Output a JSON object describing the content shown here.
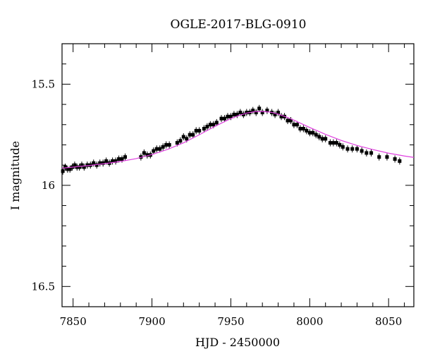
{
  "chart_data": {
    "type": "scatter",
    "title": "OGLE-2017-BLG-0910",
    "xlabel": "HJD - 2450000",
    "ylabel": "I magnitude",
    "xlim": [
      7843,
      8066
    ],
    "ylim": [
      16.6,
      15.3
    ],
    "y_inverted": true,
    "grid": false,
    "x_ticks": [
      7850,
      7900,
      7950,
      8000,
      8050
    ],
    "y_ticks": [
      15.5,
      16,
      16.5
    ],
    "x_tick_labels": [
      "7850",
      "7900",
      "7950",
      "8000",
      "8050"
    ],
    "y_tick_labels": [
      "15.5",
      "16",
      "16.5"
    ],
    "colors": {
      "data": "#000000",
      "model": "#e040e0"
    },
    "series": [
      {
        "type": "scatter",
        "x": [
          7843.5,
          7845,
          7846.5,
          7848,
          7849.5,
          7851,
          7852.5,
          7854,
          7855.5,
          7857,
          7859,
          7861,
          7863,
          7865,
          7867,
          7869,
          7871,
          7873,
          7875,
          7877,
          7879,
          7881,
          7883,
          7893,
          7895,
          7897,
          7899,
          7901,
          7903,
          7905,
          7907,
          7909,
          7911,
          7916,
          7918,
          7920,
          7922,
          7924,
          7926,
          7928,
          7930,
          7933,
          7935,
          7937,
          7939,
          7941,
          7944,
          7946,
          7948,
          7950,
          7952,
          7954,
          7956,
          7958,
          7960,
          7962,
          7964,
          7966,
          7968,
          7970,
          7973,
          7976,
          7978,
          7980,
          7982,
          7984,
          7986,
          7988,
          7990,
          7992,
          7994,
          7996,
          7998,
          8000,
          8002,
          8004,
          8006,
          8008,
          8010,
          8013,
          8015,
          8017,
          8019,
          8021,
          8024,
          8027,
          8030,
          8033,
          8036,
          8039,
          8044,
          8049,
          8054,
          8057
        ],
        "y": [
          15.93,
          15.91,
          15.92,
          15.92,
          15.91,
          15.9,
          15.91,
          15.91,
          15.9,
          15.91,
          15.9,
          15.9,
          15.89,
          15.9,
          15.89,
          15.89,
          15.88,
          15.89,
          15.88,
          15.88,
          15.87,
          15.87,
          15.86,
          15.86,
          15.84,
          15.85,
          15.85,
          15.83,
          15.82,
          15.82,
          15.81,
          15.8,
          15.8,
          15.79,
          15.78,
          15.76,
          15.77,
          15.75,
          15.75,
          15.73,
          15.73,
          15.72,
          15.71,
          15.7,
          15.7,
          15.69,
          15.67,
          15.67,
          15.66,
          15.66,
          15.65,
          15.65,
          15.64,
          15.65,
          15.64,
          15.64,
          15.63,
          15.64,
          15.62,
          15.64,
          15.63,
          15.64,
          15.65,
          15.64,
          15.66,
          15.66,
          15.68,
          15.68,
          15.7,
          15.7,
          15.72,
          15.72,
          15.73,
          15.74,
          15.74,
          15.75,
          15.76,
          15.77,
          15.77,
          15.79,
          15.79,
          15.79,
          15.8,
          15.81,
          15.82,
          15.82,
          15.82,
          15.83,
          15.84,
          15.84,
          15.86,
          15.86,
          15.87,
          15.88
        ]
      },
      {
        "type": "line",
        "x": [
          7843,
          7850,
          7860,
          7870,
          7880,
          7890,
          7900,
          7910,
          7920,
          7930,
          7940,
          7950,
          7955,
          7960,
          7965,
          7970,
          7975,
          7980,
          7985,
          7990,
          8000,
          8010,
          8020,
          8030,
          8040,
          8050,
          8060,
          8066
        ],
        "y": [
          15.915,
          15.91,
          15.902,
          15.893,
          15.882,
          15.868,
          15.848,
          15.822,
          15.79,
          15.75,
          15.708,
          15.67,
          15.655,
          15.643,
          15.636,
          15.635,
          15.638,
          15.648,
          15.662,
          15.678,
          15.714,
          15.748,
          15.778,
          15.803,
          15.823,
          15.841,
          15.855,
          15.862
        ]
      }
    ]
  }
}
